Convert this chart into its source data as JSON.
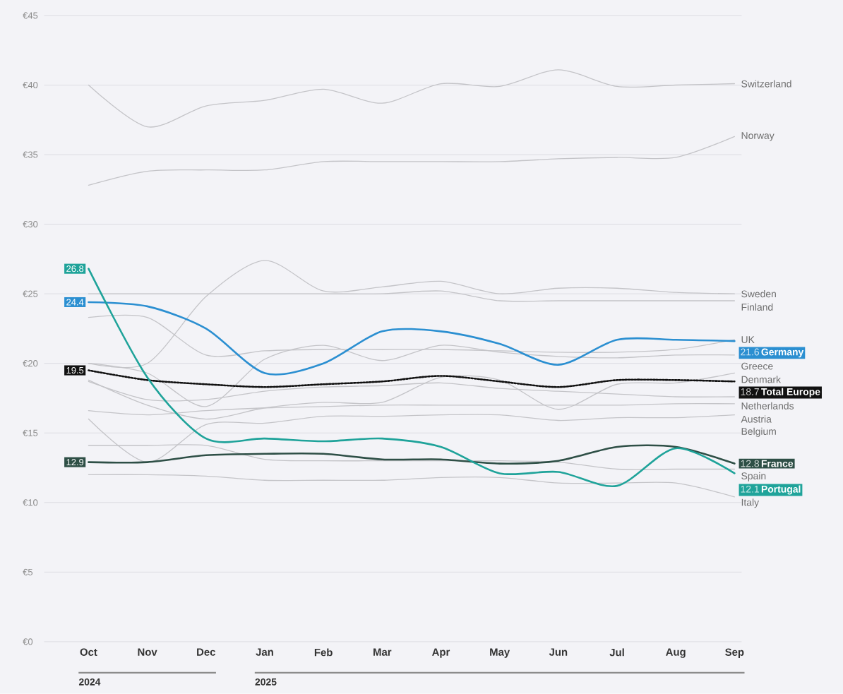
{
  "chart_data": {
    "type": "line",
    "categories": [
      "Oct",
      "Nov",
      "Dec",
      "Jan",
      "Feb",
      "Mar",
      "Apr",
      "May",
      "Jun",
      "Jul",
      "Aug",
      "Sep"
    ],
    "ylim": [
      0,
      45
    ],
    "yticks": [
      {
        "value": 0,
        "label": "€0"
      },
      {
        "value": 5,
        "label": "€5"
      },
      {
        "value": 10,
        "label": "€10"
      },
      {
        "value": 15,
        "label": "€15"
      },
      {
        "value": 20,
        "label": "€20"
      },
      {
        "value": 25,
        "label": "€25"
      },
      {
        "value": 30,
        "label": "€30"
      },
      {
        "value": 35,
        "label": "€35"
      },
      {
        "value": 40,
        "label": "€40"
      },
      {
        "value": 45,
        "label": "€45"
      }
    ],
    "grid": "y",
    "annotations": [
      "2024",
      "2025"
    ],
    "series": [
      {
        "name": "Switzerland",
        "color": "#c4c4c8",
        "values": [
          40.0,
          37.0,
          38.5,
          38.9,
          39.7,
          38.7,
          40.1,
          39.9,
          41.1,
          39.9,
          40.0,
          40.1
        ]
      },
      {
        "name": "Norway",
        "color": "#c4c4c8",
        "values": [
          32.8,
          33.8,
          33.9,
          33.9,
          34.5,
          34.5,
          34.5,
          34.5,
          34.7,
          34.8,
          34.8,
          36.3
        ]
      },
      {
        "name": "Sweden",
        "color": "#c4c4c8",
        "values": [
          20.0,
          20.0,
          24.8,
          27.4,
          25.2,
          25.5,
          25.9,
          25.0,
          25.4,
          25.4,
          25.1,
          25.0
        ]
      },
      {
        "name": "Finland",
        "color": "#c4c4c8",
        "values": [
          25.0,
          25.0,
          25.0,
          25.0,
          25.0,
          25.0,
          25.2,
          24.5,
          24.5,
          24.5,
          24.5,
          24.5
        ]
      },
      {
        "name": "UK",
        "color": "#c4c4c8",
        "values": [
          23.3,
          23.3,
          20.6,
          20.9,
          21.0,
          21.0,
          21.0,
          20.9,
          20.8,
          20.8,
          21.0,
          21.7
        ]
      },
      {
        "name": "Greece",
        "color": "#c4c4c8",
        "values": [
          20.0,
          19.3,
          16.9,
          20.3,
          21.3,
          20.2,
          21.3,
          20.8,
          20.5,
          20.4,
          20.6,
          20.6
        ]
      },
      {
        "name": "Denmark",
        "color": "#c4c4c8",
        "values": [
          18.8,
          17.0,
          16.0,
          16.8,
          17.2,
          17.2,
          19.0,
          18.8,
          16.7,
          18.5,
          18.6,
          19.3
        ]
      },
      {
        "name": "Netherlands",
        "color": "#c4c4c8",
        "values": [
          18.7,
          17.4,
          17.4,
          18.0,
          18.3,
          18.4,
          18.6,
          18.2,
          18.0,
          17.8,
          17.6,
          17.6
        ]
      },
      {
        "name": "Austria",
        "color": "#c4c4c8",
        "values": [
          16.6,
          16.3,
          16.6,
          16.8,
          16.9,
          17.0,
          17.0,
          17.0,
          17.0,
          17.0,
          17.1,
          17.1
        ]
      },
      {
        "name": "Belgium",
        "color": "#c4c4c8",
        "values": [
          16.0,
          12.9,
          15.6,
          15.7,
          16.2,
          16.2,
          16.3,
          16.3,
          15.9,
          16.1,
          16.1,
          16.3
        ]
      },
      {
        "name": "Spain",
        "color": "#c4c4c8",
        "values": [
          14.1,
          14.1,
          14.1,
          13.1,
          13.0,
          13.0,
          13.0,
          13.0,
          12.9,
          12.4,
          12.4,
          12.4
        ]
      },
      {
        "name": "Italy",
        "color": "#c4c4c8",
        "values": [
          12.0,
          12.0,
          11.9,
          11.6,
          11.6,
          11.6,
          11.8,
          11.8,
          11.4,
          11.4,
          11.4,
          10.4
        ]
      },
      {
        "name": "Total Europe",
        "color": "#111111",
        "line_style": "dotted",
        "values": [
          19.5,
          18.8,
          18.5,
          18.3,
          18.5,
          18.7,
          19.1,
          18.7,
          18.3,
          18.8,
          18.8,
          18.7
        ],
        "value_labels": [
          "19.5",
          null,
          null,
          null,
          null,
          null,
          null,
          null,
          null,
          null,
          null,
          "18.7"
        ]
      },
      {
        "name": "France",
        "color": "#2e4f46",
        "values": [
          12.9,
          12.9,
          13.4,
          13.5,
          13.5,
          13.1,
          13.1,
          12.8,
          13.0,
          14.0,
          14.0,
          12.8
        ],
        "value_labels": [
          "12.9",
          null,
          null,
          null,
          null,
          null,
          null,
          null,
          null,
          null,
          null,
          "12.8"
        ]
      },
      {
        "name": "Germany",
        "color": "#2b8fd1",
        "values": [
          24.4,
          24.1,
          22.5,
          19.3,
          20.0,
          22.3,
          22.3,
          21.4,
          19.9,
          21.7,
          21.7,
          21.6
        ],
        "value_labels": [
          "24.4",
          null,
          null,
          null,
          null,
          null,
          null,
          null,
          null,
          null,
          null,
          "21.6"
        ]
      },
      {
        "name": "Portugal",
        "color": "#1fa39a",
        "values": [
          26.8,
          19.0,
          14.6,
          14.6,
          14.4,
          14.6,
          14.0,
          12.1,
          12.2,
          11.2,
          13.9,
          12.1
        ],
        "value_labels": [
          "26.8",
          null,
          null,
          null,
          null,
          null,
          null,
          null,
          null,
          null,
          null,
          "12.1"
        ]
      }
    ]
  }
}
